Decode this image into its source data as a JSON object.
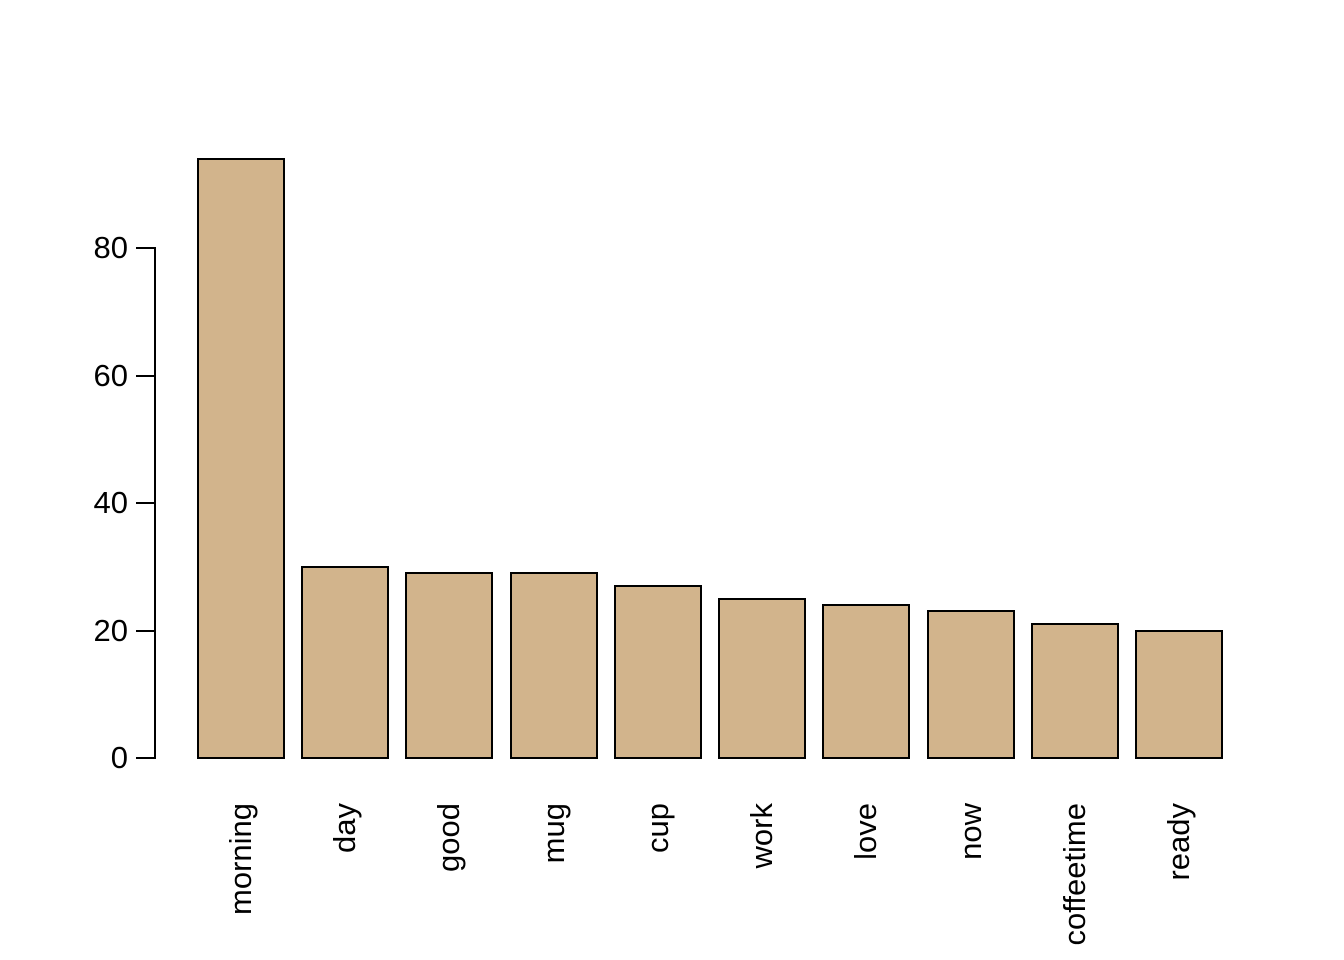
{
  "chart_data": {
    "type": "bar",
    "categories": [
      "morning",
      "day",
      "good",
      "mug",
      "cup",
      "work",
      "love",
      "now",
      "coffeetime",
      "ready"
    ],
    "values": [
      94,
      30,
      29,
      29,
      27,
      25,
      24,
      23,
      21,
      20
    ],
    "title": "",
    "xlabel": "",
    "ylabel": "",
    "ylim": [
      0,
      95
    ],
    "yticks": [
      0,
      20,
      40,
      60,
      80
    ],
    "grid": "off",
    "legend": "none",
    "bar_fill_color": "#D2B48C",
    "bar_border_color": "#000000",
    "axis_color": "#000000",
    "text_color": "#000000",
    "background_color": "#FFFFFF"
  }
}
